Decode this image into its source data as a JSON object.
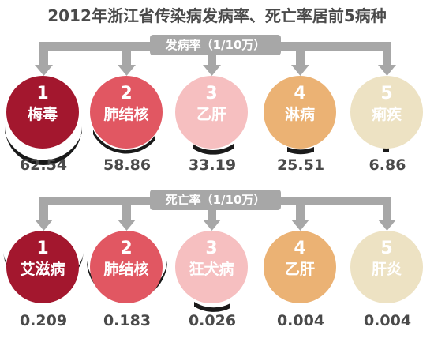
{
  "title": "2012年浙江省传染病发病率、死亡率居前5病种",
  "incidence": {
    "label": "发病率（1/10万）",
    "items": [
      {
        "rank": "1",
        "name": "梅毒",
        "value": "62.54",
        "color": "#a3172e"
      },
      {
        "rank": "2",
        "name": "肺结核",
        "value": "58.86",
        "color": "#e15762"
      },
      {
        "rank": "3",
        "name": "乙肝",
        "value": "33.19",
        "color": "#f6bfc0"
      },
      {
        "rank": "4",
        "name": "淋病",
        "value": "25.51",
        "color": "#ebb274"
      },
      {
        "rank": "5",
        "name": "痢疾",
        "value": "6.86",
        "color": "#ede2c3"
      }
    ]
  },
  "mortality": {
    "label": "死亡率（1/10万）",
    "items": [
      {
        "rank": "1",
        "name": "艾滋病",
        "value": "0.209",
        "color": "#a3172e"
      },
      {
        "rank": "2",
        "name": "肺结核",
        "value": "0.183",
        "color": "#e15762"
      },
      {
        "rank": "3",
        "name": "狂犬病",
        "value": "0.026",
        "color": "#f6bfc0"
      },
      {
        "rank": "4",
        "name": "乙肝",
        "value": "0.004",
        "color": "#ebb274"
      },
      {
        "rank": "5",
        "name": "肝炎",
        "value": "0.004",
        "color": "#ede2c3"
      }
    ]
  }
}
